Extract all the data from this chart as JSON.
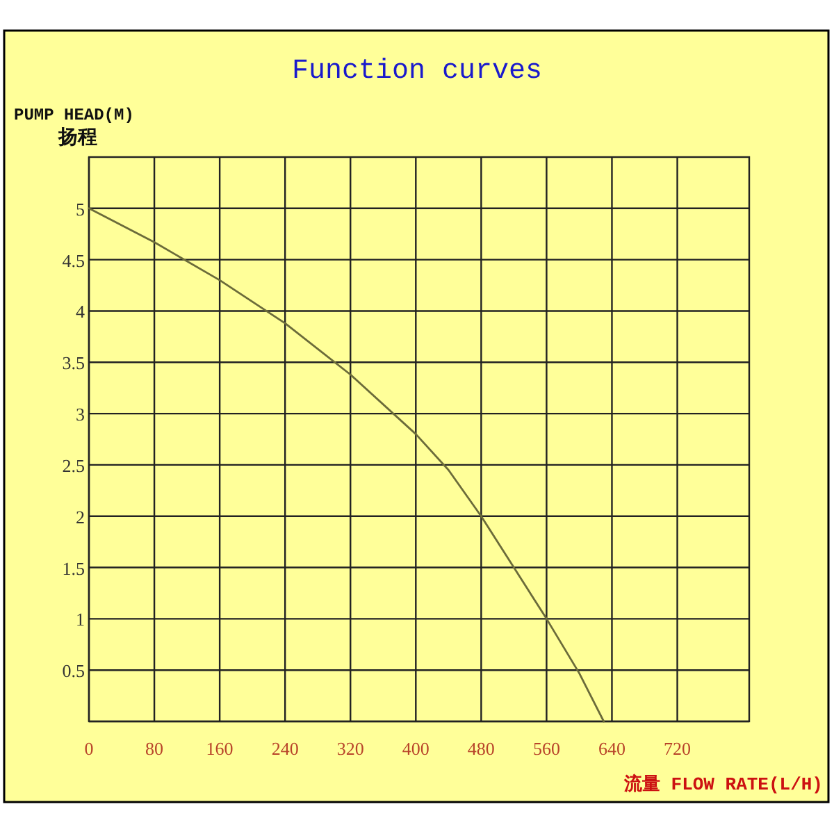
{
  "chart_data": {
    "type": "line",
    "title": "Function curves",
    "xlabel": "流量 FLOW RATE(L/H)",
    "ylabel": "PUMP HEAD(M)\n扬程",
    "xlim": [
      0,
      808
    ],
    "ylim": [
      0,
      5.5
    ],
    "xticks": [
      0,
      80,
      160,
      240,
      320,
      400,
      480,
      560,
      640,
      720
    ],
    "yticks": [
      {
        "value": 0,
        "label": null
      },
      0.5,
      1,
      1.5,
      2,
      2.5,
      3,
      3.5,
      4,
      4.5,
      5
    ],
    "grid": true,
    "marker": "none",
    "line_style": "solid",
    "series": [
      {
        "color": "#6b6b3a",
        "x": [
          0,
          80,
          160,
          240,
          320,
          400,
          440,
          480,
          520,
          560,
          600,
          630
        ],
        "values": [
          5,
          4.67,
          4.3,
          3.88,
          3.38,
          2.8,
          2.45,
          2.0,
          1.5,
          1.0,
          0.47,
          0
        ]
      }
    ]
  }
}
